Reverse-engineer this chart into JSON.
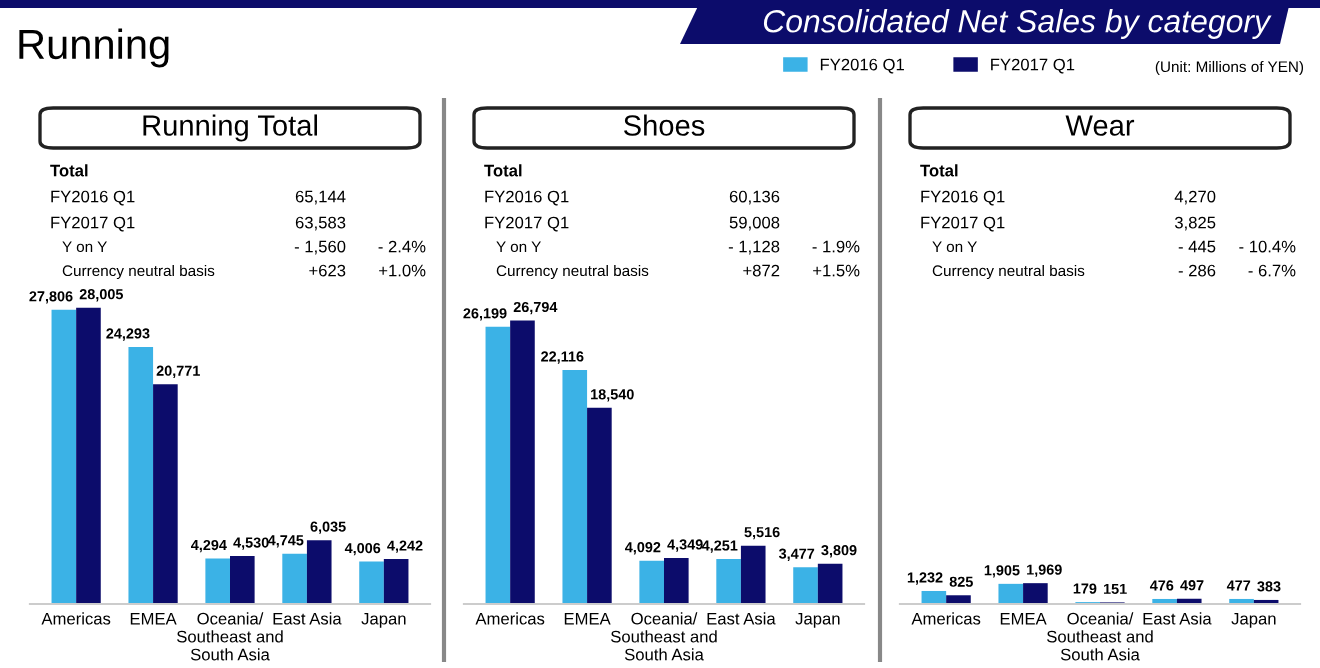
{
  "chart_data": [
    {
      "type": "bar",
      "title": "Running Total",
      "categories": [
        "Americas",
        "EMEA",
        "Oceania/\nSoutheast and\nSouth Asia",
        "East Asia",
        "Japan"
      ],
      "legend": "top right",
      "series": [
        {
          "name": "FY2016 Q1",
          "color": "#3bb2e6",
          "values": [
            27806,
            24293,
            4294,
            4745,
            4006
          ],
          "value_labels": [
            "27,806",
            "24,293",
            "4,294",
            "4,745",
            "4,006"
          ]
        },
        {
          "name": "FY2017 Q1",
          "color": "#0c0c6b",
          "values": [
            28005,
            20771,
            4530,
            6035,
            4242
          ],
          "value_labels": [
            "28,005",
            "20,771",
            "4,530",
            "6,035",
            "4,242"
          ]
        }
      ],
      "annotations": [
        "Total",
        "FY2016 Q1",
        "65,144",
        "FY2017 Q1",
        "63,583",
        "Y on Y",
        "- 1,560",
        "- 2.4%",
        "Currency neutral basis",
        "+623",
        "+1.0%",
        "Running",
        "Consolidated Net Sales by category",
        "(Unit: Millions of YEN)"
      ]
    },
    {
      "type": "bar",
      "title": "Shoes",
      "categories": [
        "Americas",
        "EMEA",
        "Oceania/\nSoutheast and\nSouth Asia",
        "East Asia",
        "Japan"
      ],
      "series": [
        {
          "color": "#3bb2e6",
          "values": [
            26199,
            22116,
            4092,
            4251,
            3477
          ],
          "value_labels": [
            "26,199",
            "22,116",
            "4,092",
            "4,251",
            "3,477"
          ]
        },
        {
          "color": "#0c0c6b",
          "values": [
            26794,
            18540,
            4349,
            5516,
            3809
          ],
          "value_labels": [
            "26,794",
            "18,540",
            "4,349",
            "5,516",
            "3,809"
          ]
        }
      ],
      "annotations": [
        "Total",
        "FY2016 Q1",
        "60,136",
        "FY2017 Q1",
        "59,008",
        "Y on Y",
        "- 1,128",
        "- 1.9%",
        "Currency neutral basis",
        "+872",
        "+1.5%"
      ]
    },
    {
      "type": "bar",
      "title": "Wear",
      "categories": [
        "Americas",
        "EMEA",
        "Oceania/\nSoutheast and\nSouth Asia",
        "East Asia",
        "Japan"
      ],
      "series": [
        {
          "color": "#3bb2e6",
          "values": [
            1232,
            1905,
            179,
            476,
            477
          ],
          "value_labels": [
            "1,232",
            "1,905",
            "179",
            "476",
            "477"
          ]
        },
        {
          "color": "#0c0c6b",
          "values": [
            825,
            1969,
            151,
            497,
            383
          ],
          "value_labels": [
            "825",
            "1,969",
            "151",
            "497",
            "383"
          ]
        }
      ],
      "annotations": [
        "Total",
        "FY2016 Q1",
        "4,270",
        "FY2017 Q1",
        "3,825",
        "Y on Y",
        "- 445",
        "- 10.4%",
        "Currency neutral basis",
        "- 286",
        "- 6.7%"
      ]
    }
  ]
}
